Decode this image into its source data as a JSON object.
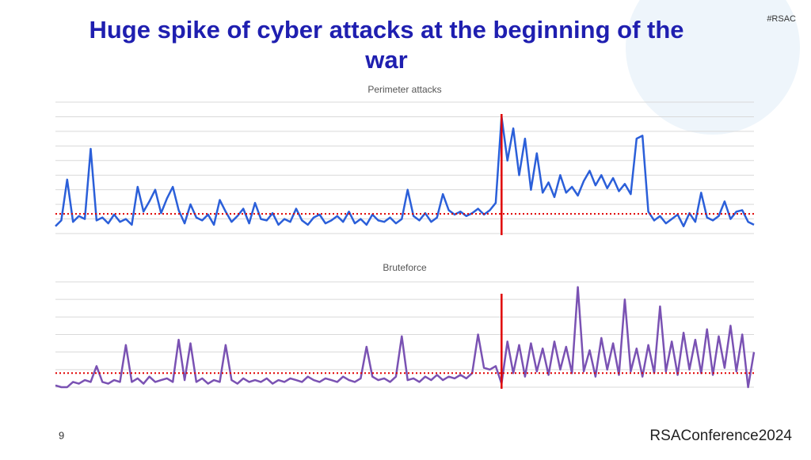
{
  "slide": {
    "title": "Huge spike of cyber attacks at the beginning of the war",
    "tag": "#RSAC",
    "page": "9",
    "logo": "RSAConference2024"
  },
  "chart_data": [
    {
      "type": "line",
      "title": "Perimeter attacks",
      "color": "#2b5fd9",
      "ylim": [
        0,
        9
      ],
      "yticks": [
        0,
        1,
        2,
        3,
        4,
        5,
        6,
        7,
        8,
        9
      ],
      "grid": true,
      "reference_line": 1.35,
      "reference_color": "#e00000",
      "marker_index": 76,
      "marker_color": "#e00000",
      "values": [
        0.5,
        0.9,
        3.7,
        0.8,
        1.2,
        1.0,
        5.8,
        0.9,
        1.1,
        0.7,
        1.3,
        0.8,
        1.0,
        0.6,
        3.2,
        1.5,
        2.2,
        3.0,
        1.4,
        2.4,
        3.2,
        1.6,
        0.7,
        2.0,
        1.1,
        0.9,
        1.3,
        0.6,
        2.3,
        1.5,
        0.8,
        1.2,
        1.7,
        0.7,
        2.1,
        1.0,
        0.9,
        1.4,
        0.6,
        1.0,
        0.8,
        1.7,
        0.9,
        0.6,
        1.1,
        1.3,
        0.7,
        0.9,
        1.2,
        0.8,
        1.5,
        0.7,
        1.0,
        0.6,
        1.3,
        0.9,
        0.8,
        1.1,
        0.7,
        1.0,
        3.0,
        1.2,
        0.9,
        1.4,
        0.8,
        1.1,
        2.7,
        1.6,
        1.3,
        1.5,
        1.2,
        1.4,
        1.7,
        1.3,
        1.6,
        2.1,
        8.0,
        5.0,
        7.2,
        4.0,
        6.5,
        3.0,
        5.5,
        2.8,
        3.5,
        2.5,
        4.0,
        2.8,
        3.2,
        2.6,
        3.6,
        4.3,
        3.3,
        4.0,
        3.1,
        3.8,
        2.9,
        3.4,
        2.7,
        6.5,
        6.7,
        1.5,
        0.9,
        1.2,
        0.7,
        1.0,
        1.3,
        0.5,
        1.4,
        0.8,
        2.8,
        1.1,
        0.9,
        1.2,
        2.2,
        1.0,
        1.5,
        1.6,
        0.8,
        0.6
      ]
    },
    {
      "type": "line",
      "title": "Bruteforce",
      "color": "#7a52b3",
      "ylim": [
        0,
        6
      ],
      "yticks": [
        0,
        1,
        2,
        3,
        4,
        5,
        6
      ],
      "grid": true,
      "reference_line": 0.8,
      "reference_color": "#e00000",
      "marker_index": 76,
      "marker_color": "#e00000",
      "values": [
        0.1,
        0.0,
        0.0,
        0.3,
        0.2,
        0.4,
        0.3,
        1.2,
        0.3,
        0.2,
        0.4,
        0.3,
        2.4,
        0.3,
        0.5,
        0.2,
        0.6,
        0.3,
        0.4,
        0.5,
        0.3,
        2.7,
        0.4,
        2.5,
        0.3,
        0.5,
        0.2,
        0.4,
        0.3,
        2.4,
        0.4,
        0.2,
        0.5,
        0.3,
        0.4,
        0.3,
        0.5,
        0.2,
        0.4,
        0.3,
        0.5,
        0.4,
        0.3,
        0.6,
        0.4,
        0.3,
        0.5,
        0.4,
        0.3,
        0.6,
        0.4,
        0.3,
        0.5,
        2.3,
        0.6,
        0.4,
        0.5,
        0.3,
        0.6,
        2.9,
        0.4,
        0.5,
        0.3,
        0.6,
        0.4,
        0.7,
        0.4,
        0.6,
        0.5,
        0.7,
        0.5,
        0.8,
        3.0,
        1.1,
        1.0,
        1.2,
        0.2,
        2.6,
        0.8,
        2.4,
        0.6,
        2.5,
        0.9,
        2.2,
        0.7,
        2.6,
        1.0,
        2.3,
        0.8,
        5.7,
        0.9,
        2.1,
        0.6,
        2.8,
        1.0,
        2.5,
        0.7,
        5.0,
        0.9,
        2.2,
        0.6,
        2.4,
        0.8,
        4.6,
        0.9,
        2.6,
        0.7,
        3.1,
        1.0,
        2.7,
        0.8,
        3.3,
        0.7,
        2.9,
        1.1,
        3.5,
        0.9,
        3.0,
        0.0,
        2.0
      ]
    }
  ]
}
